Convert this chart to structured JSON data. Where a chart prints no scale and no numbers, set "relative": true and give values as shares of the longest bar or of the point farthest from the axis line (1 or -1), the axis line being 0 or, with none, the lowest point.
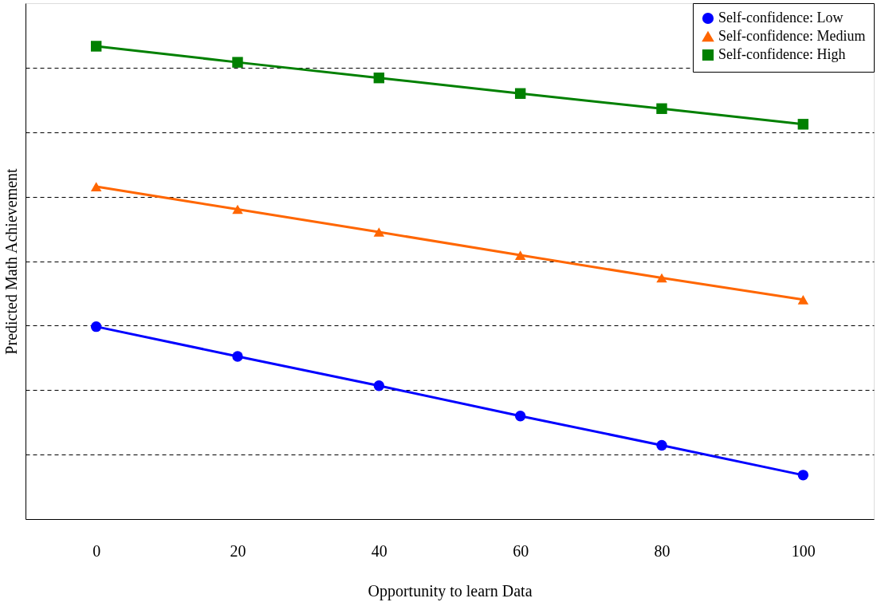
{
  "chart_data": {
    "type": "line",
    "xlabel": "Opportunity to learn Data",
    "ylabel": "Predicted Math Achievement",
    "relative": true,
    "x": [
      0,
      20,
      40,
      60,
      80,
      100
    ],
    "xlim": [
      -10,
      110
    ],
    "xticks": [
      0,
      20,
      40,
      60,
      80,
      100
    ],
    "series": [
      {
        "name": "Self-confidence: Low",
        "color": "#0000ff",
        "marker": "circle",
        "values": [
          0.407,
          0.344,
          0.282,
          0.218,
          0.156,
          0.093
        ]
      },
      {
        "name": "Self-confidence: Medium",
        "color": "#ff6600",
        "marker": "triangle",
        "values": [
          0.703,
          0.655,
          0.607,
          0.558,
          0.51,
          0.464
        ]
      },
      {
        "name": "Self-confidence: High",
        "color": "#008000",
        "marker": "square",
        "values": [
          1.0,
          0.966,
          0.933,
          0.9,
          0.868,
          0.835
        ]
      }
    ],
    "grid": "y",
    "legend": "top right",
    "line_style": "solid"
  }
}
